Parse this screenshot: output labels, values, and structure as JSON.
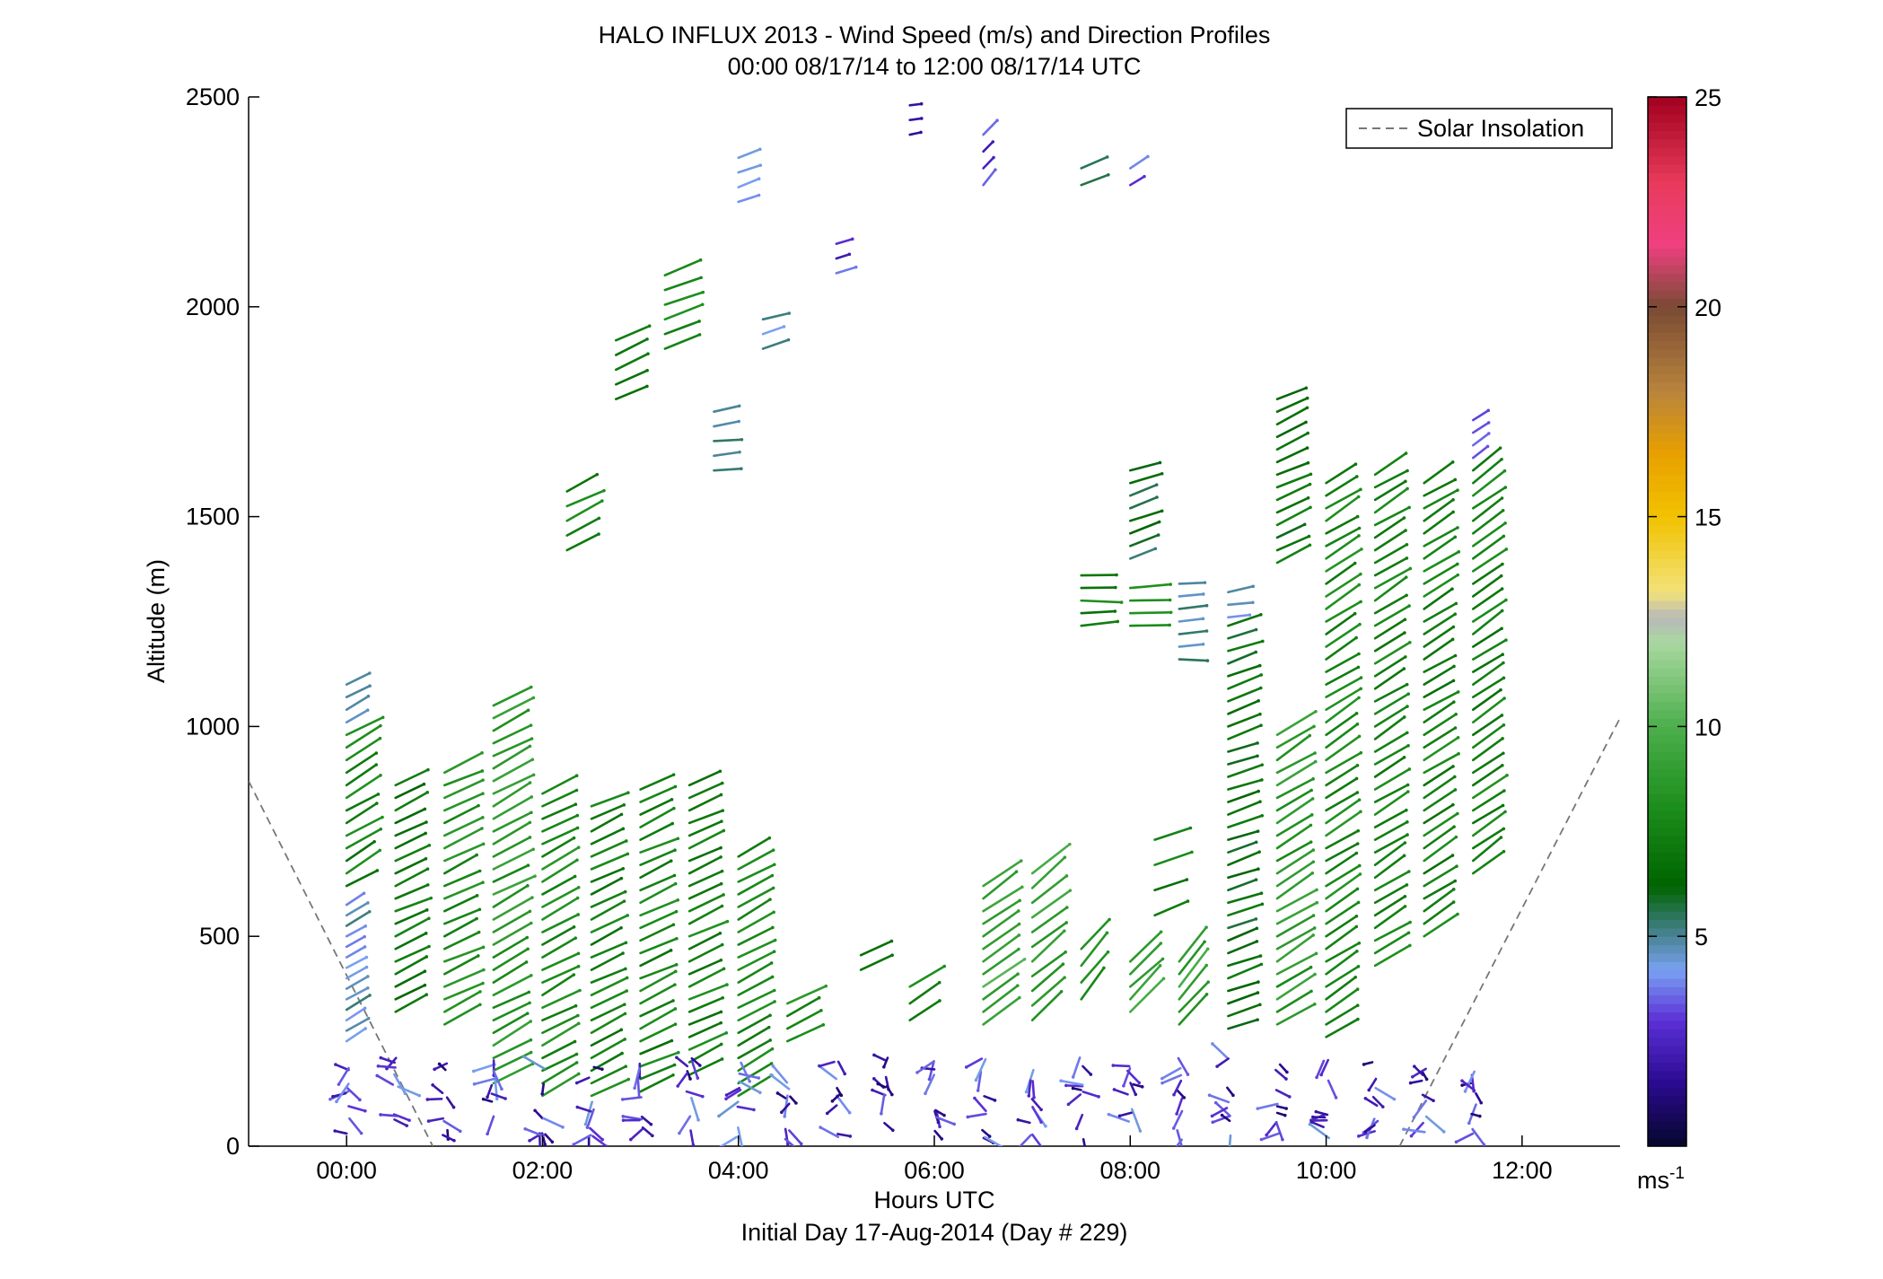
{
  "chart_data": {
    "type": "quiver",
    "title": "HALO INFLUX 2013 - Wind Speed (m/s) and Direction Profiles",
    "subtitle": "00:00 08/17/14 to 12:00 08/17/14  UTC",
    "xlabel": "Hours UTC",
    "footer": "Initial Day 17-Aug-2014 (Day # 229)",
    "ylabel": "Altitude (m)",
    "xlim": [
      -1.0,
      13.0
    ],
    "ylim": [
      0,
      2500
    ],
    "xticks": [
      0,
      2,
      4,
      6,
      8,
      10,
      12
    ],
    "xtick_labels": [
      "00:00",
      "02:00",
      "04:00",
      "06:00",
      "08:00",
      "10:00",
      "12:00"
    ],
    "yticks": [
      0,
      500,
      1000,
      1500,
      2000,
      2500
    ],
    "ytick_labels": [
      "0",
      "500",
      "1000",
      "1500",
      "2000",
      "2500"
    ],
    "legend": {
      "label": "Solar Insolation",
      "position": "top-right",
      "style": "dashed"
    },
    "colorbar": {
      "range": [
        0,
        25
      ],
      "ticks": [
        5,
        10,
        15,
        20,
        25
      ],
      "tick_labels": [
        "5",
        "10",
        "15",
        "20",
        "25"
      ],
      "unit_base": "ms",
      "unit_exp": "-1",
      "colormap": [
        [
          0,
          "#06072b"
        ],
        [
          1.5,
          "#2a0a8f"
        ],
        [
          3,
          "#5b2fd6"
        ],
        [
          4.2,
          "#7aa2f2"
        ],
        [
          5.2,
          "#3e7d80"
        ],
        [
          6.2,
          "#006400"
        ],
        [
          8,
          "#1a8c1a"
        ],
        [
          10,
          "#4caf4c"
        ],
        [
          12,
          "#a9d8a0"
        ],
        [
          12.6,
          "#b8b8b8"
        ],
        [
          13.2,
          "#f2e27a"
        ],
        [
          15,
          "#f2c200"
        ],
        [
          16.5,
          "#e8a000"
        ],
        [
          18,
          "#b8843c"
        ],
        [
          20,
          "#7a4a35"
        ],
        [
          21.5,
          "#f04080"
        ],
        [
          23,
          "#e83a5a"
        ],
        [
          25,
          "#a0001e"
        ]
      ]
    },
    "solar_insolation": [
      {
        "x": [
          -1.0,
          0.88
        ],
        "y": [
          870,
          0
        ]
      },
      {
        "x": [
          10.75,
          13.0
        ],
        "y": [
          0,
          1020
        ]
      }
    ],
    "profiles": [
      {
        "time": 0.0,
        "base": 620,
        "top": 1100,
        "step": 30,
        "dir": 60,
        "speed": 7.5,
        "top_speed": 4.5
      },
      {
        "time": 0.0,
        "base": 250,
        "top": 590,
        "step": 25,
        "dir": 60,
        "speed": 4.5
      },
      {
        "time": 0.5,
        "base": 320,
        "top": 860,
        "step": 30,
        "dir": 65,
        "speed": 7
      },
      {
        "time": 1.0,
        "base": 290,
        "top": 890,
        "step": 30,
        "dir": 65,
        "speed": 8
      },
      {
        "time": 1.5,
        "base": 150,
        "top": 1060,
        "step": 30,
        "dir": 62,
        "speed": 8.5
      },
      {
        "time": 2.0,
        "base": 120,
        "top": 840,
        "step": 30,
        "dir": 62,
        "speed": 8
      },
      {
        "time": 2.5,
        "base": 120,
        "top": 820,
        "step": 30,
        "dir": 65,
        "speed": 7.5
      },
      {
        "time": 3.0,
        "base": 130,
        "top": 860,
        "step": 30,
        "dir": 65,
        "speed": 7.5
      },
      {
        "time": 3.5,
        "base": 170,
        "top": 860,
        "step": 30,
        "dir": 65,
        "speed": 7.5
      },
      {
        "time": 4.0,
        "base": 120,
        "top": 690,
        "step": 30,
        "dir": 62,
        "speed": 7.5
      },
      {
        "time": 6.5,
        "base": 290,
        "top": 620,
        "step": 30,
        "dir": 55,
        "speed": 9.5
      },
      {
        "time": 7.0,
        "base": 300,
        "top": 650,
        "step": 35,
        "dir": 50,
        "speed": 9
      },
      {
        "time": 8.0,
        "base": 320,
        "top": 450,
        "step": 30,
        "dir": 45,
        "speed": 9
      },
      {
        "time": 8.5,
        "base": 290,
        "top": 440,
        "step": 30,
        "dir": 40,
        "speed": 9
      },
      {
        "time": 9.0,
        "base": 280,
        "top": 1240,
        "step": 30,
        "dir": 70,
        "speed": 6.5
      },
      {
        "time": 9.5,
        "base": 290,
        "top": 1000,
        "step": 30,
        "dir": 58,
        "speed": 8.5
      },
      {
        "time": 9.5,
        "base": 1390,
        "top": 1780,
        "step": 30,
        "dir": 65,
        "speed": 6.8
      },
      {
        "time": 10.0,
        "base": 260,
        "top": 1600,
        "step": 30,
        "dir": 58,
        "speed": 7.8
      },
      {
        "time": 10.5,
        "base": 430,
        "top": 1600,
        "step": 30,
        "dir": 58,
        "speed": 7.5
      },
      {
        "time": 11.0,
        "base": 500,
        "top": 1600,
        "step": 30,
        "dir": 58,
        "speed": 7.5
      },
      {
        "time": 11.5,
        "base": 650,
        "top": 1730,
        "step": 30,
        "dir": 55,
        "speed": 7.5,
        "top_speed": 3.5
      },
      {
        "time": 2.25,
        "base": 1420,
        "top": 1560,
        "step": 35,
        "dir": 65,
        "speed": 7.5
      },
      {
        "time": 2.75,
        "base": 1780,
        "top": 1920,
        "step": 35,
        "dir": 68,
        "speed": 7
      },
      {
        "time": 3.25,
        "base": 1900,
        "top": 2100,
        "step": 35,
        "dir": 68,
        "speed": 7.5
      },
      {
        "time": 3.75,
        "base": 1610,
        "top": 1780,
        "step": 35,
        "dir": 82,
        "speed": 5
      },
      {
        "time": 4.25,
        "base": 1900,
        "top": 2000,
        "step": 35,
        "dir": 72,
        "speed": 4.5
      },
      {
        "time": 5.0,
        "base": 2080,
        "top": 2170,
        "step": 35,
        "dir": 75,
        "speed": 3
      },
      {
        "time": 4.0,
        "base": 2250,
        "top": 2360,
        "step": 35,
        "dir": 68,
        "speed": 4.5
      },
      {
        "time": 5.75,
        "base": 2410,
        "top": 2490,
        "step": 35,
        "dir": 78,
        "speed": 1.5
      },
      {
        "time": 6.5,
        "base": 2290,
        "top": 2420,
        "step": 40,
        "dir": 40,
        "speed": 3
      },
      {
        "time": 7.5,
        "base": 2290,
        "top": 2360,
        "step": 40,
        "dir": 65,
        "speed": 5.5
      },
      {
        "time": 8.0,
        "base": 2290,
        "top": 2360,
        "step": 40,
        "dir": 55,
        "speed": 3.5
      },
      {
        "time": 7.5,
        "base": 1240,
        "top": 1370,
        "step": 30,
        "dir": 88,
        "speed": 7.5
      },
      {
        "time": 8.0,
        "base": 1240,
        "top": 1350,
        "step": 30,
        "dir": 85,
        "speed": 7.5
      },
      {
        "time": 8.0,
        "base": 1400,
        "top": 1610,
        "step": 30,
        "dir": 72,
        "speed": 6
      },
      {
        "time": 8.5,
        "base": 1160,
        "top": 1340,
        "step": 30,
        "dir": 88,
        "speed": 5
      },
      {
        "time": 9.0,
        "base": 1260,
        "top": 1330,
        "step": 30,
        "dir": 80,
        "speed": 4.2
      },
      {
        "time": 4.5,
        "base": 250,
        "top": 340,
        "step": 30,
        "dir": 62,
        "speed": 8
      },
      {
        "time": 5.25,
        "base": 420,
        "top": 470,
        "step": 35,
        "dir": 62,
        "speed": 7.5
      },
      {
        "time": 5.75,
        "base": 300,
        "top": 400,
        "step": 40,
        "dir": 55,
        "speed": 7.5
      },
      {
        "time": 7.5,
        "base": 350,
        "top": 490,
        "step": 40,
        "dir": 40,
        "speed": 8
      },
      {
        "time": 8.25,
        "base": 550,
        "top": 770,
        "step": 60,
        "dir": 68,
        "speed": 7.5
      }
    ],
    "surface_profiles": [
      {
        "time": 0.0
      },
      {
        "time": 0.5
      },
      {
        "time": 1.0
      },
      {
        "time": 1.5
      },
      {
        "time": 2.0
      },
      {
        "time": 2.5
      },
      {
        "time": 3.0
      },
      {
        "time": 3.5
      },
      {
        "time": 4.0
      },
      {
        "time": 4.5
      },
      {
        "time": 5.0
      },
      {
        "time": 5.5
      },
      {
        "time": 6.0
      },
      {
        "time": 6.5
      },
      {
        "time": 7.0
      },
      {
        "time": 7.5
      },
      {
        "time": 8.0
      },
      {
        "time": 8.5
      },
      {
        "time": 9.0
      },
      {
        "time": 9.5
      },
      {
        "time": 10.0
      },
      {
        "time": 10.5
      },
      {
        "time": 11.0
      },
      {
        "time": 11.5
      }
    ]
  }
}
